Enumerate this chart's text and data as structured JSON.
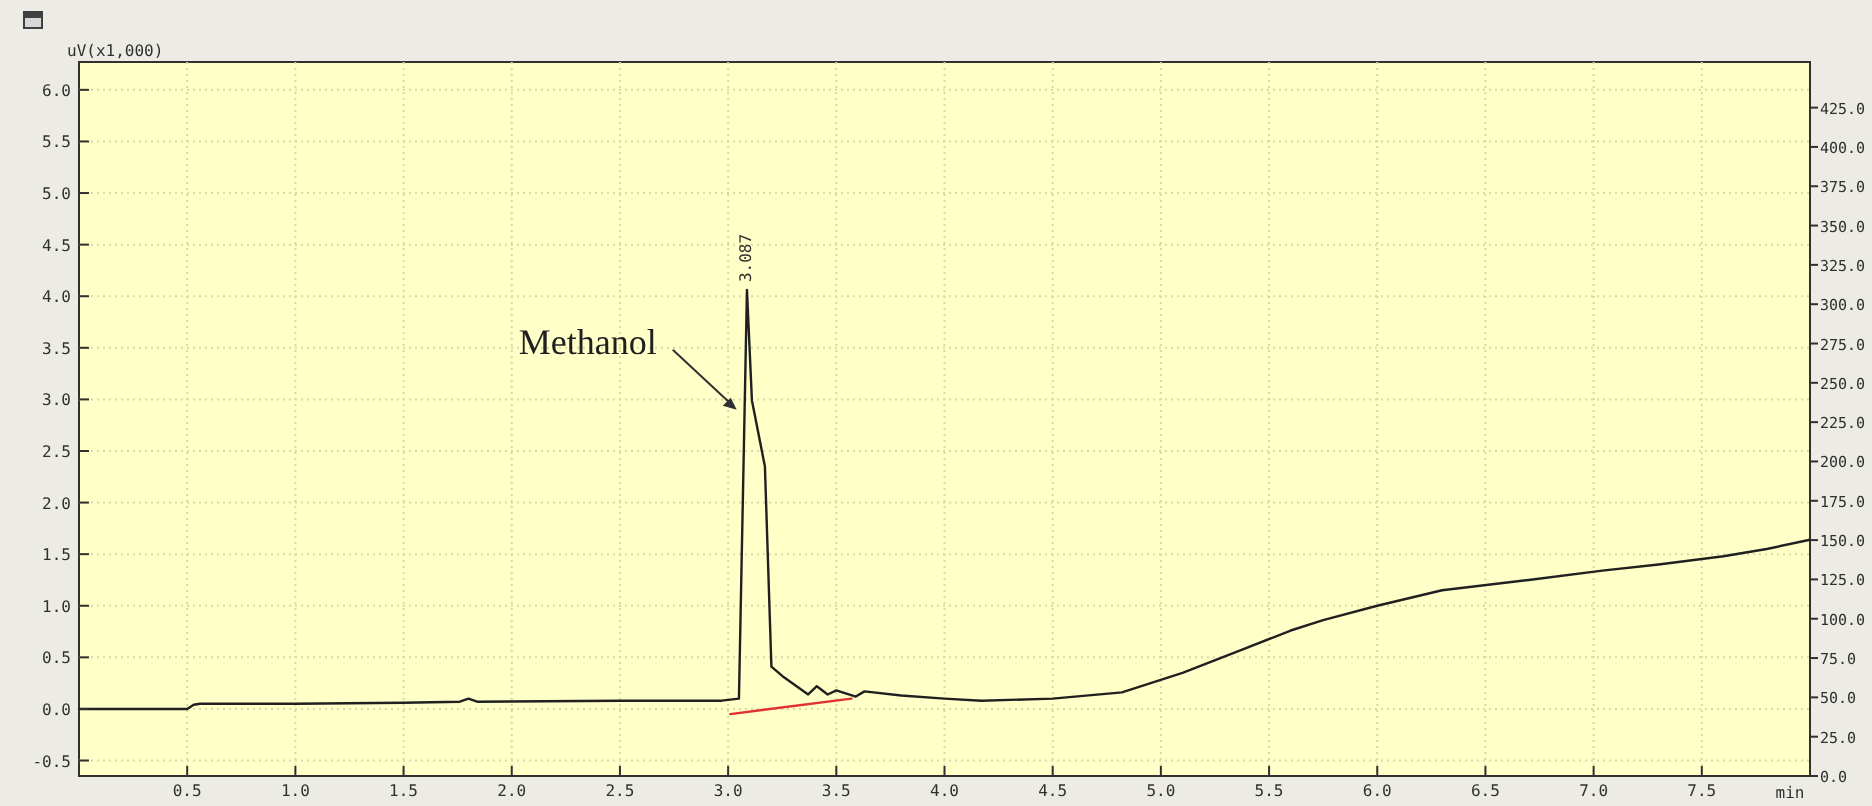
{
  "chart_data": {
    "type": "line",
    "ylabel": "uV(x1,000)",
    "xlabel": "min",
    "xlim": [
      0,
      8.0
    ],
    "ylim": [
      -0.65,
      6.27
    ],
    "y2lim": [
      0,
      454
    ],
    "xticks": [
      {
        "value": 0.5,
        "label": "0.5"
      },
      {
        "value": 1,
        "label": "1.0"
      },
      {
        "value": 1.5,
        "label": "1.5"
      },
      {
        "value": 2,
        "label": "2.0"
      },
      {
        "value": 2.5,
        "label": "2.5"
      },
      {
        "value": 3,
        "label": "3.0"
      },
      {
        "value": 3.5,
        "label": "3.5"
      },
      {
        "value": 4,
        "label": "4.0"
      },
      {
        "value": 4.5,
        "label": "4.5"
      },
      {
        "value": 5,
        "label": "5.0"
      },
      {
        "value": 5.5,
        "label": "5.5"
      },
      {
        "value": 6,
        "label": "6.0"
      },
      {
        "value": 6.5,
        "label": "6.5"
      },
      {
        "value": 7,
        "label": "7.0"
      },
      {
        "value": 7.5,
        "label": "7.5"
      }
    ],
    "yticks": [
      {
        "value": -0.5,
        "label": "-0.5"
      },
      {
        "value": 0,
        "label": "0.0"
      },
      {
        "value": 0.5,
        "label": "0.5"
      },
      {
        "value": 1,
        "label": "1.0"
      },
      {
        "value": 1.5,
        "label": "1.5"
      },
      {
        "value": 2,
        "label": "2.0"
      },
      {
        "value": 2.5,
        "label": "2.5"
      },
      {
        "value": 3,
        "label": "3.0"
      },
      {
        "value": 3.5,
        "label": "3.5"
      },
      {
        "value": 4,
        "label": "4.0"
      },
      {
        "value": 4.5,
        "label": "4.5"
      },
      {
        "value": 5,
        "label": "5.0"
      },
      {
        "value": 5.5,
        "label": "5.5"
      },
      {
        "value": 6,
        "label": "6.0"
      }
    ],
    "y2ticks": [
      {
        "value": 0,
        "label": "0.0"
      },
      {
        "value": 25,
        "label": "25.0"
      },
      {
        "value": 50,
        "label": "50.0"
      },
      {
        "value": 75,
        "label": "75.0"
      },
      {
        "value": 100,
        "label": "100.0"
      },
      {
        "value": 125,
        "label": "125.0"
      },
      {
        "value": 150,
        "label": "150.0"
      },
      {
        "value": 175,
        "label": "175.0"
      },
      {
        "value": 200,
        "label": "200.0"
      },
      {
        "value": 225,
        "label": "225.0"
      },
      {
        "value": 250,
        "label": "250.0"
      },
      {
        "value": 275,
        "label": "275.0"
      },
      {
        "value": 300,
        "label": "300.0"
      },
      {
        "value": 325,
        "label": "325.0"
      },
      {
        "value": 350,
        "label": "350.0"
      },
      {
        "value": 375,
        "label": "375.0"
      },
      {
        "value": 400,
        "label": "400.0"
      },
      {
        "value": 425,
        "label": "425.0"
      }
    ],
    "grid": true,
    "series": [
      {
        "color": "#202020",
        "x": [
          0,
          0.5,
          0.53,
          0.56,
          1.0,
          1.5,
          1.76,
          1.8,
          1.84,
          2.5,
          2.97,
          3.05,
          3.087,
          3.11,
          3.17,
          3.2,
          3.25,
          3.37,
          3.41,
          3.46,
          3.5,
          3.59,
          3.63,
          3.8,
          4.0,
          4.17,
          4.5,
          4.82,
          5.1,
          5.37,
          5.6,
          5.75,
          6.0,
          6.3,
          6.7,
          7.04,
          7.3,
          7.6,
          7.8,
          8.0
        ],
        "values": [
          0,
          0,
          0.04,
          0.05,
          0.05,
          0.06,
          0.07,
          0.1,
          0.07,
          0.08,
          0.08,
          0.1,
          4.06,
          2.99,
          2.35,
          0.41,
          0.32,
          0.14,
          0.22,
          0.14,
          0.18,
          0.12,
          0.17,
          0.13,
          0.1,
          0.08,
          0.1,
          0.16,
          0.35,
          0.57,
          0.76,
          0.86,
          1.0,
          1.15,
          1.25,
          1.34,
          1.4,
          1.48,
          1.55,
          1.64
        ]
      },
      {
        "color": "#e03030",
        "x": [
          3.01,
          3.57
        ],
        "values": [
          -0.05,
          0.1
        ]
      }
    ],
    "annotations": [
      {
        "text": "Methanol",
        "x": 3.04,
        "y": 2.9
      },
      {
        "text": "3.087",
        "x": 3.087,
        "y": 4.06
      }
    ]
  }
}
